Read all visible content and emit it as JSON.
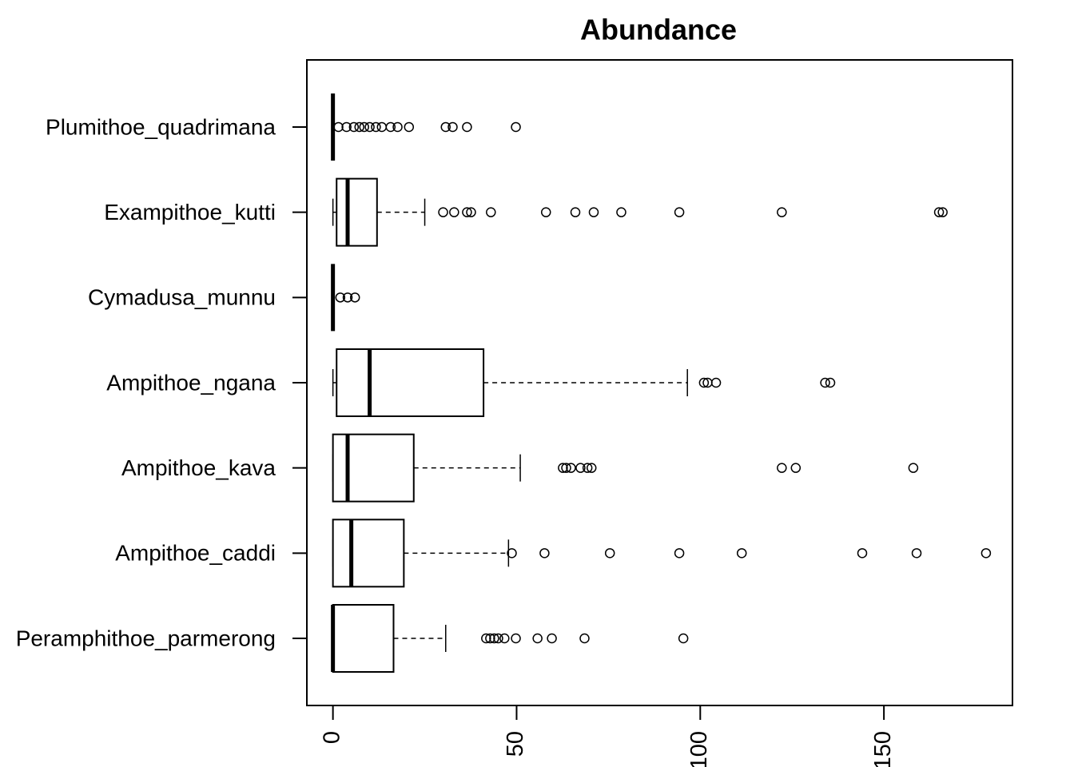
{
  "chart_data": {
    "type": "boxplot",
    "title": "Abundance",
    "orientation": "horizontal",
    "categories": [
      "Peramphithoe_parmerong",
      "Ampithoe_caddi",
      "Ampithoe_kava",
      "Ampithoe_ngana",
      "Cymadusa_munnu",
      "Exampithoe_kutti",
      "Plumithoe_quadrimana"
    ],
    "boxes": [
      {
        "low": 0,
        "q1": 0,
        "median": 0,
        "q3": 16.5,
        "high": 30.7,
        "outliers": [
          41.7,
          42.8,
          43.9,
          45,
          46.7,
          49.8,
          55.7,
          59.6,
          68.5,
          95.4
        ]
      },
      {
        "low": 0,
        "q1": 0,
        "median": 5,
        "q3": 19.3,
        "high": 47.8,
        "outliers": [
          48.7,
          57.6,
          75.4,
          94.3,
          111.3,
          144.1,
          158.9,
          177.8
        ]
      },
      {
        "low": 0,
        "q1": 0,
        "median": 4,
        "q3": 22,
        "high": 51,
        "outliers": [
          62.6,
          63.5,
          64.8,
          67.4,
          69.3,
          70.4,
          122.2,
          126,
          158
        ]
      },
      {
        "low": 0,
        "q1": 1,
        "median": 10,
        "q3": 41,
        "high": 96.5,
        "outliers": [
          101,
          102,
          104.3,
          134,
          135.4
        ]
      },
      {
        "low": 0,
        "q1": 0,
        "median": 0,
        "q3": 0,
        "high": 0,
        "outliers": [
          2,
          4,
          6
        ]
      },
      {
        "low": 0,
        "q1": 1,
        "median": 4,
        "q3": 12,
        "high": 25,
        "outliers": [
          30,
          33,
          36.5,
          37.6,
          43,
          58,
          66,
          71,
          78.5,
          94.3,
          122.2,
          165,
          166
        ]
      },
      {
        "low": 0,
        "q1": 0,
        "median": 0,
        "q3": 0,
        "high": 0,
        "outliers": [
          1.5,
          3.7,
          5.7,
          7.2,
          8.5,
          10,
          11.7,
          13.3,
          15.7,
          17.6,
          20.7,
          30.7,
          32.6,
          36.5,
          49.8
        ]
      }
    ],
    "color": "#000000",
    "xlim": [
      -7.1,
      185
    ],
    "xticks": [
      0,
      50,
      100,
      150
    ],
    "grid": false
  }
}
